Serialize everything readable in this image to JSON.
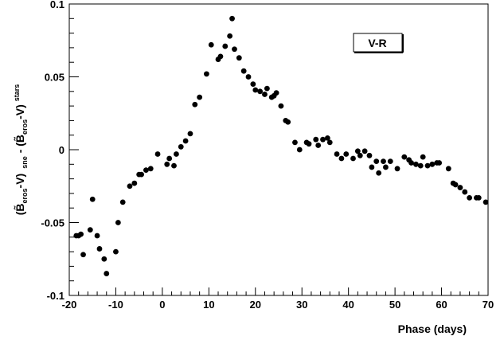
{
  "chart_data": {
    "type": "scatter",
    "title": "",
    "xlabel": "Phase (days)",
    "ylabel": {
      "open": "(",
      "b1": "B̃",
      "sub1": "eros",
      "mid1": "-V)",
      "sub_sne": "sne",
      "minus": "- (",
      "b2": "B̃",
      "sub2": "eros",
      "mid2": "-V)",
      "sub_stars": "stars"
    },
    "xlim": [
      -20,
      70
    ],
    "ylim": [
      -0.1,
      0.1
    ],
    "x_ticks": [
      -20,
      -10,
      0,
      10,
      20,
      30,
      40,
      50,
      60,
      70
    ],
    "x_tick_labels": [
      "-20",
      "-10",
      "0",
      "10",
      "20",
      "30",
      "40",
      "50",
      "60",
      "70"
    ],
    "y_ticks": [
      -0.1,
      -0.05,
      0,
      0.05,
      0.1
    ],
    "y_tick_labels": [
      "-0.1",
      "-0.05",
      "0",
      "0.05",
      "0.1"
    ],
    "grid": false,
    "annotation": "V-R",
    "series": [
      {
        "marker_color": "#000000",
        "points": [
          [
            -18.5,
            -0.059
          ],
          [
            -18.0,
            -0.059
          ],
          [
            -17.5,
            -0.058
          ],
          [
            -17.0,
            -0.072
          ],
          [
            -15.5,
            -0.055
          ],
          [
            -15.0,
            -0.034
          ],
          [
            -14.0,
            -0.059
          ],
          [
            -13.5,
            -0.068
          ],
          [
            -12.5,
            -0.075
          ],
          [
            -12.0,
            -0.085
          ],
          [
            -10.0,
            -0.07
          ],
          [
            -9.5,
            -0.05
          ],
          [
            -8.5,
            -0.036
          ],
          [
            -7.0,
            -0.025
          ],
          [
            -6.0,
            -0.023
          ],
          [
            -5.0,
            -0.017
          ],
          [
            -4.5,
            -0.017
          ],
          [
            -3.5,
            -0.014
          ],
          [
            -2.5,
            -0.013
          ],
          [
            -1.0,
            -0.003
          ],
          [
            1.0,
            -0.01
          ],
          [
            1.5,
            -0.006
          ],
          [
            2.5,
            -0.011
          ],
          [
            3.0,
            -0.003
          ],
          [
            4.0,
            0.002
          ],
          [
            5.0,
            0.006
          ],
          [
            6.0,
            0.011
          ],
          [
            7.0,
            0.031
          ],
          [
            8.0,
            0.036
          ],
          [
            9.5,
            0.052
          ],
          [
            10.5,
            0.072
          ],
          [
            12.0,
            0.062
          ],
          [
            12.5,
            0.064
          ],
          [
            13.5,
            0.071
          ],
          [
            14.5,
            0.078
          ],
          [
            15.0,
            0.09
          ],
          [
            15.5,
            0.069
          ],
          [
            16.5,
            0.063
          ],
          [
            17.5,
            0.054
          ],
          [
            18.5,
            0.05
          ],
          [
            19.5,
            0.045
          ],
          [
            20.0,
            0.041
          ],
          [
            21.0,
            0.04
          ],
          [
            22.0,
            0.038
          ],
          [
            22.5,
            0.042
          ],
          [
            23.5,
            0.036
          ],
          [
            24.0,
            0.037
          ],
          [
            24.5,
            0.039
          ],
          [
            25.5,
            0.03
          ],
          [
            26.5,
            0.02
          ],
          [
            27.0,
            0.019
          ],
          [
            28.5,
            0.005
          ],
          [
            29.5,
            0.0
          ],
          [
            31.0,
            0.005
          ],
          [
            31.5,
            0.004
          ],
          [
            33.0,
            0.007
          ],
          [
            33.5,
            0.003
          ],
          [
            34.5,
            0.007
          ],
          [
            35.5,
            0.008
          ],
          [
            36.0,
            0.005
          ],
          [
            37.5,
            -0.003
          ],
          [
            38.5,
            -0.006
          ],
          [
            39.5,
            -0.003
          ],
          [
            41.0,
            -0.006
          ],
          [
            42.0,
            -0.001
          ],
          [
            42.5,
            -0.004
          ],
          [
            43.5,
            -0.001
          ],
          [
            44.5,
            -0.004
          ],
          [
            45.0,
            -0.012
          ],
          [
            46.0,
            -0.008
          ],
          [
            46.5,
            -0.016
          ],
          [
            47.5,
            -0.008
          ],
          [
            48.0,
            -0.012
          ],
          [
            49.0,
            -0.008
          ],
          [
            50.5,
            -0.013
          ],
          [
            52.0,
            -0.005
          ],
          [
            53.0,
            -0.007
          ],
          [
            53.5,
            -0.009
          ],
          [
            54.5,
            -0.01
          ],
          [
            55.5,
            -0.011
          ],
          [
            56.0,
            -0.005
          ],
          [
            57.0,
            -0.011
          ],
          [
            58.0,
            -0.01
          ],
          [
            59.0,
            -0.009
          ],
          [
            59.5,
            -0.009
          ],
          [
            61.5,
            -0.013
          ],
          [
            62.5,
            -0.023
          ],
          [
            63.0,
            -0.024
          ],
          [
            64.0,
            -0.026
          ],
          [
            65.0,
            -0.029
          ],
          [
            66.0,
            -0.033
          ],
          [
            67.5,
            -0.033
          ],
          [
            68.0,
            -0.033
          ],
          [
            69.5,
            -0.036
          ]
        ]
      }
    ]
  }
}
